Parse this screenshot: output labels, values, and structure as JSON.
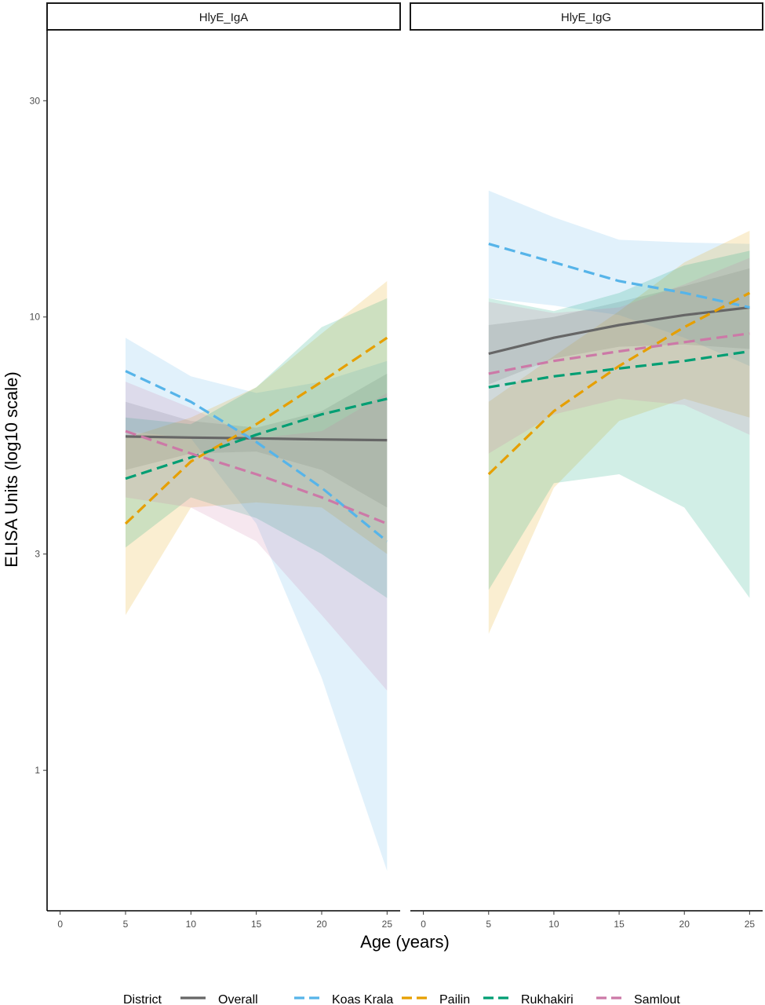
{
  "chart_data": {
    "type": "scatter",
    "title": "",
    "xlabel": "Age (years)",
    "ylabel": "ELISA Units (log10 scale)",
    "y_scale": "log10",
    "xlim": [
      -1,
      26
    ],
    "ylim": [
      0.49,
      43
    ],
    "x_ticks": [
      0,
      5,
      10,
      15,
      20,
      25
    ],
    "y_ticks": [
      1,
      3,
      10,
      30
    ],
    "grid": false,
    "legend": {
      "title": "District",
      "position": "bottom",
      "entries": [
        {
          "name": "Overall",
          "color": "#666666",
          "dash": "solid"
        },
        {
          "name": "Koas Krala",
          "color": "#56B4E9",
          "dash": "dashed"
        },
        {
          "name": "Pailin",
          "color": "#E69F00",
          "dash": "dashed"
        },
        {
          "name": "Rukhakiri",
          "color": "#009E73",
          "dash": "dashed"
        },
        {
          "name": "Samlout",
          "color": "#CC79A7",
          "dash": "dashed"
        }
      ]
    },
    "panels": [
      {
        "facet": "HlyE_IgA",
        "lines": [
          {
            "name": "Overall",
            "x": [
              5,
              10,
              15,
              20,
              25
            ],
            "y": [
              5.45,
              5.42,
              5.4,
              5.37,
              5.35
            ],
            "band_lower": [
              4.6,
              5.0,
              5.05,
              4.6,
              3.8
            ],
            "band_upper": [
              6.5,
              5.9,
              5.7,
              6.2,
              7.5
            ]
          },
          {
            "name": "Koas Krala",
            "x": [
              5,
              10,
              15,
              20,
              25
            ],
            "y": [
              7.6,
              6.5,
              5.3,
              4.2,
              3.2
            ],
            "band_lower": [
              5.6,
              5.4,
              3.5,
              1.6,
              0.6
            ],
            "band_upper": [
              9.0,
              7.4,
              6.8,
              7.2,
              8.0
            ]
          },
          {
            "name": "Pailin",
            "x": [
              5,
              10,
              15,
              20,
              25
            ],
            "y": [
              3.5,
              4.8,
              5.8,
              7.2,
              9.0
            ],
            "band_lower": [
              2.2,
              3.8,
              3.9,
              3.8,
              3.0
            ],
            "band_upper": [
              5.4,
              6.0,
              7.0,
              9.2,
              12.0
            ]
          },
          {
            "name": "Rukhakiri",
            "x": [
              5,
              10,
              15,
              20,
              25
            ],
            "y": [
              4.4,
              4.9,
              5.5,
              6.1,
              6.6
            ],
            "band_lower": [
              3.1,
              4.0,
              3.6,
              3.0,
              2.4
            ],
            "band_upper": [
              6.0,
              5.8,
              7.0,
              9.5,
              11.0
            ]
          },
          {
            "name": "Samlout",
            "x": [
              5,
              10,
              15,
              20,
              25
            ],
            "y": [
              5.6,
              5.0,
              4.5,
              4.0,
              3.5
            ],
            "band_lower": [
              4.0,
              3.8,
              3.2,
              2.2,
              1.5
            ],
            "band_upper": [
              7.2,
              6.3,
              5.4,
              5.6,
              6.8
            ]
          }
        ]
      },
      {
        "facet": "HlyE_IgG",
        "lines": [
          {
            "name": "Overall",
            "x": [
              5,
              10,
              15,
              20,
              25
            ],
            "y": [
              8.3,
              9.0,
              9.6,
              10.1,
              10.5
            ],
            "band_lower": [
              7.1,
              8.1,
              8.6,
              8.7,
              8.5
            ],
            "band_upper": [
              9.6,
              10.0,
              10.8,
              11.7,
              12.8
            ]
          },
          {
            "name": "Koas Krala",
            "x": [
              5,
              10,
              15,
              20,
              25
            ],
            "y": [
              14.5,
              13.2,
              12.0,
              11.3,
              10.5
            ],
            "band_lower": [
              11.0,
              10.6,
              10.1,
              9.0,
              7.8
            ],
            "band_upper": [
              19.0,
              16.6,
              14.8,
              14.6,
              14.5
            ]
          },
          {
            "name": "Pailin",
            "x": [
              5,
              10,
              15,
              20,
              25
            ],
            "y": [
              4.5,
              6.2,
              7.8,
              9.5,
              11.3
            ],
            "band_lower": [
              2.0,
              4.2,
              5.9,
              6.6,
              6.0
            ],
            "band_upper": [
              6.5,
              8.2,
              10.3,
              13.2,
              15.5
            ]
          },
          {
            "name": "Rukhakiri",
            "x": [
              5,
              10,
              15,
              20,
              25
            ],
            "y": [
              7.0,
              7.4,
              7.7,
              8.0,
              8.4
            ],
            "band_lower": [
              2.5,
              4.3,
              4.5,
              3.8,
              2.4
            ],
            "band_upper": [
              11.0,
              10.3,
              11.3,
              13.0,
              14.0
            ]
          },
          {
            "name": "Samlout",
            "x": [
              5,
              10,
              15,
              20,
              25
            ],
            "y": [
              7.5,
              8.0,
              8.4,
              8.8,
              9.2
            ],
            "band_lower": [
              5.0,
              6.1,
              6.6,
              6.4,
              5.5
            ],
            "band_upper": [
              10.8,
              10.2,
              10.5,
              11.8,
              13.5
            ]
          }
        ]
      }
    ]
  }
}
